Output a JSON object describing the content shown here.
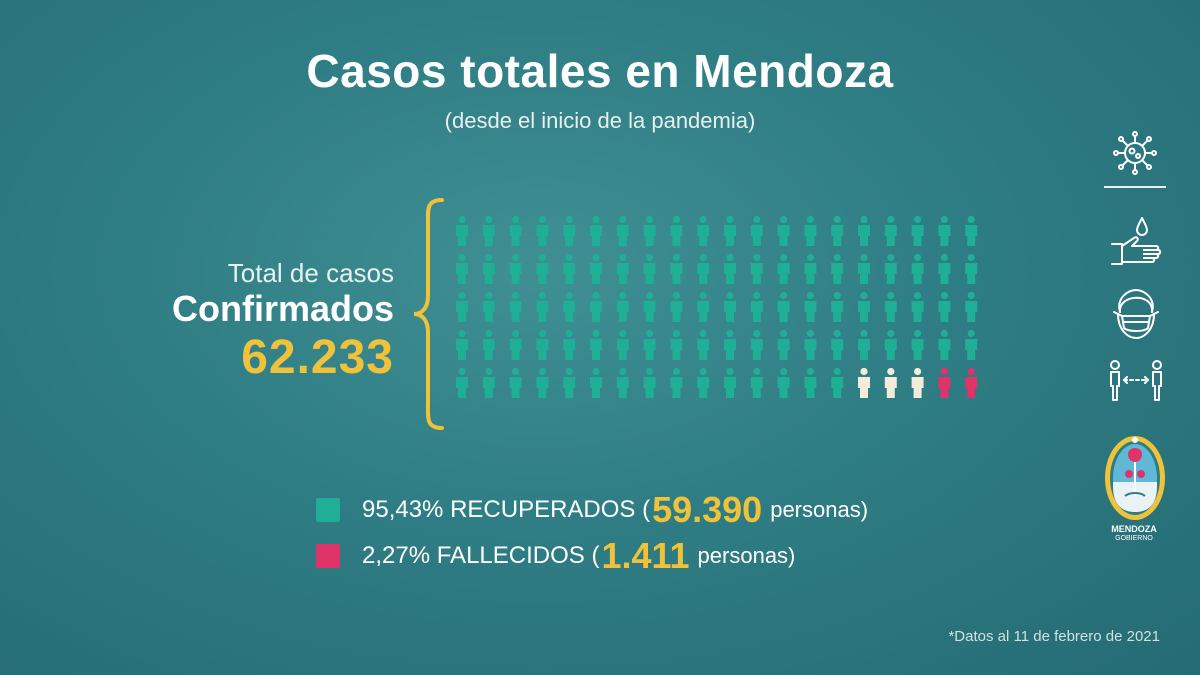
{
  "title": "Casos totales en Mendoza",
  "subtitle": "(desde el inicio de la pandemia)",
  "total_label": "Total de casos",
  "confirmed_label": "Confirmados",
  "total_value": "62.233",
  "legend": {
    "recovered": {
      "text": "95,43% RECUPERADOS (",
      "number": "59.390",
      "suffix": "personas)",
      "color": "#1fae96"
    },
    "deceased": {
      "text": "2,27% FALLECIDOS (",
      "number": "1.411",
      "suffix": "personas)",
      "color": "#e0336a"
    }
  },
  "footnote": "*Datos al 11 de febrero de 2021",
  "crest": {
    "line1": "MENDOZA",
    "line2": "GOBIERNO"
  },
  "side_icons": [
    "virus-icon",
    "hand-wash-icon",
    "face-mask-icon",
    "social-distance-icon"
  ],
  "colors": {
    "recovered": "#1fae96",
    "active": "#f3ecd8",
    "deceased": "#e0336a",
    "accent": "#f0c23a"
  },
  "chart_data": {
    "type": "pictogram",
    "total_icons": 100,
    "rows": 5,
    "cols": 20,
    "counts": {
      "recovered": 95,
      "active": 3,
      "deceased": 2
    },
    "series": [
      {
        "name": "RECUPERADOS",
        "percent": 95.43,
        "persons": 59390
      },
      {
        "name": "FALLECIDOS",
        "percent": 2.27,
        "persons": 1411
      }
    ],
    "total": 62233
  }
}
